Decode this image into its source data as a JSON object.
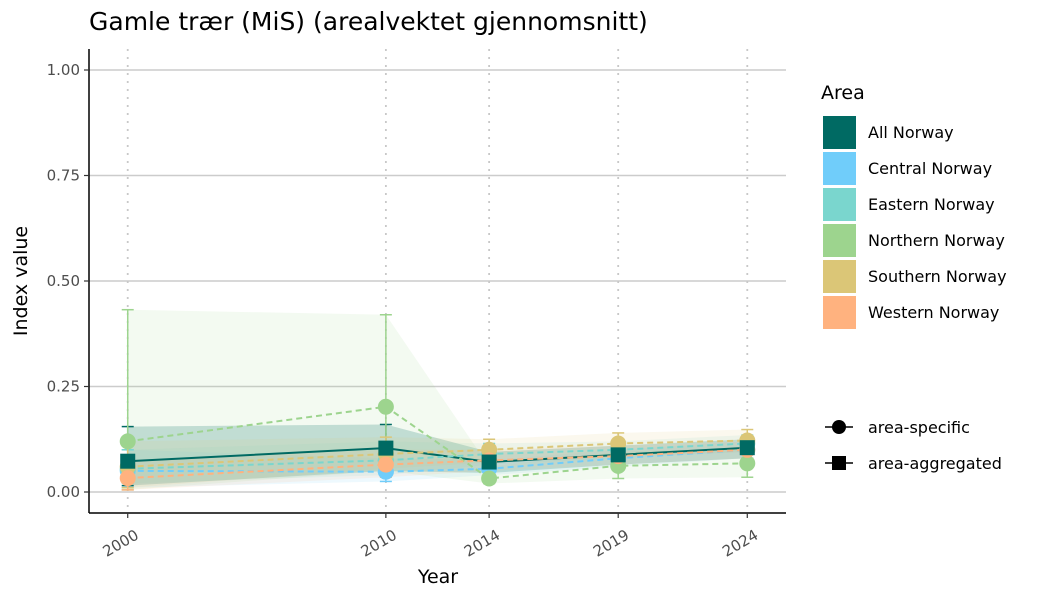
{
  "chart_data": {
    "type": "line",
    "title": "Gamle trær (MiS) (arealvektet gjennomsnitt)",
    "xlabel": "Year",
    "ylabel": "Index value",
    "x": [
      2000,
      2010,
      2014,
      2019,
      2024
    ],
    "x_tick_labels": [
      "2000",
      "2010",
      "2014",
      "2019",
      "2024"
    ],
    "xlim": [
      1998.5,
      2025.5
    ],
    "ylim": [
      0,
      1
    ],
    "y_ticks": [
      0,
      0.25,
      0.5,
      0.75,
      1
    ],
    "y_tick_labels": [
      "0.00",
      "0.25",
      "0.50",
      "0.75",
      "1.00"
    ],
    "grid": "horizontal major lines, dotted vertical lines at data years",
    "legend": {
      "title": "Area",
      "position": "right",
      "shape_entries": [
        {
          "label": "area-specific",
          "shape": "circle"
        },
        {
          "label": "area-aggregated",
          "shape": "square"
        }
      ]
    },
    "series": [
      {
        "name": "All Norway",
        "color": "#006a63",
        "aggregated": true,
        "values": [
          0.073,
          0.104,
          0.071,
          0.088,
          0.105
        ],
        "lower": [
          0.015,
          0.05,
          0.045,
          0.065,
          0.08
        ],
        "upper": [
          0.155,
          0.16,
          0.095,
          0.11,
          0.125
        ]
      },
      {
        "name": "Central Norway",
        "color": "#70cdfa",
        "aggregated": false,
        "values": [
          0.05,
          0.048,
          0.055,
          0.08,
          0.1
        ],
        "lower": [
          0.01,
          0.025,
          0.04,
          0.06,
          0.08
        ],
        "upper": [
          0.1,
          0.08,
          0.075,
          0.1,
          0.12
        ]
      },
      {
        "name": "Eastern Norway",
        "color": "#7ad6ce",
        "aggregated": false,
        "values": [
          0.055,
          0.075,
          0.09,
          0.1,
          0.115
        ],
        "lower": [
          0.02,
          0.04,
          0.065,
          0.08,
          0.095
        ],
        "upper": [
          0.1,
          0.12,
          0.115,
          0.12,
          0.135
        ]
      },
      {
        "name": "Northern Norway",
        "color": "#9dd48e",
        "aggregated": false,
        "values": [
          0.12,
          0.202,
          0.032,
          0.062,
          0.068
        ],
        "lower": [
          0.005,
          0.05,
          0.02,
          0.032,
          0.035
        ],
        "upper": [
          0.432,
          0.42,
          0.06,
          0.095,
          0.105
        ]
      },
      {
        "name": "Southern Norway",
        "color": "#dbc677",
        "aggregated": false,
        "values": [
          0.06,
          0.09,
          0.1,
          0.115,
          0.122
        ],
        "lower": [
          0.01,
          0.055,
          0.07,
          0.085,
          0.095
        ],
        "upper": [
          0.12,
          0.13,
          0.125,
          0.14,
          0.148
        ]
      },
      {
        "name": "Western Norway",
        "color": "#ffb27f",
        "aggregated": false,
        "values": [
          0.033,
          0.065,
          0.075,
          0.085,
          0.1
        ],
        "lower": [
          0.005,
          0.035,
          0.05,
          0.065,
          0.08
        ],
        "upper": [
          0.075,
          0.1,
          0.1,
          0.11,
          0.12
        ]
      }
    ]
  }
}
